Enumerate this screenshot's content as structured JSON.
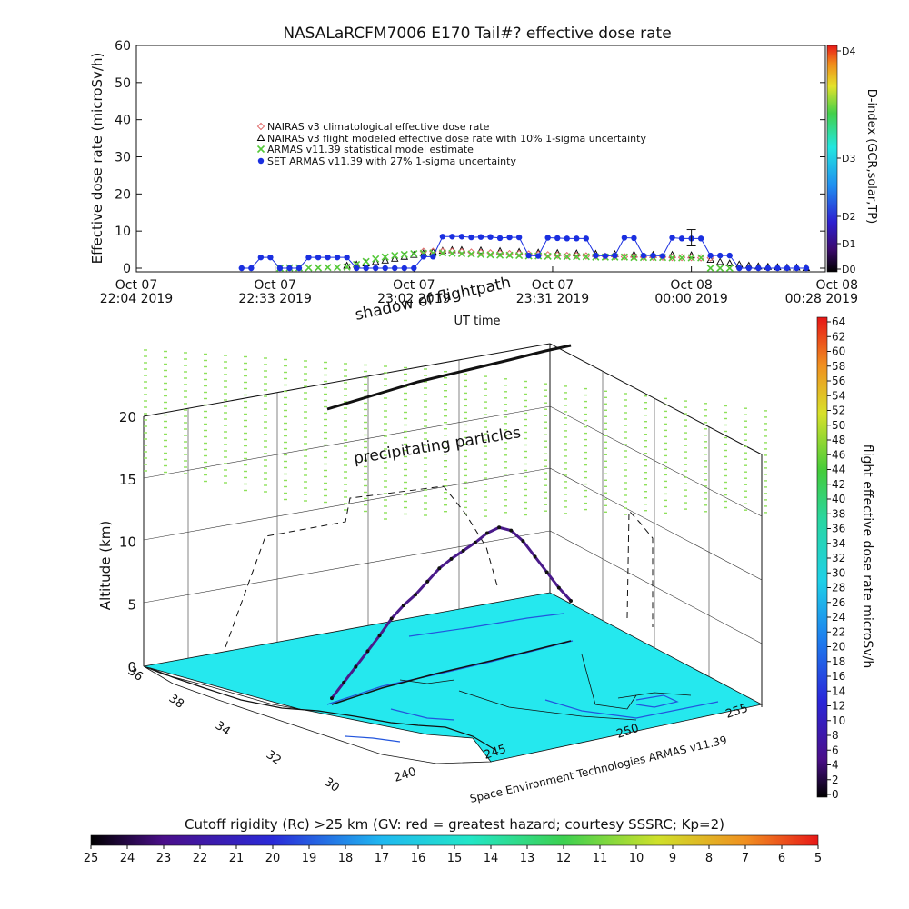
{
  "chart_data": [
    {
      "type": "scatter",
      "title": "NASALaRCFM7006  E170 Tail#? effective dose rate",
      "ylabel": "Effective dose rate  (microSv/h)",
      "xlabel": "UT time",
      "ylim": [
        0,
        60
      ],
      "yticks": [
        0,
        10,
        20,
        30,
        40,
        50,
        60
      ],
      "xlim_minutes": [
        0,
        144
      ],
      "xticks": [
        {
          "m": 0,
          "line1": "Oct 07",
          "line2": "22:04  2019"
        },
        {
          "m": 29,
          "line1": "Oct 07",
          "line2": "22:33  2019"
        },
        {
          "m": 58,
          "line1": "Oct 07",
          "line2": "23:02  2019"
        },
        {
          "m": 87,
          "line1": "Oct 07",
          "line2": "23:31  2019"
        },
        {
          "m": 116,
          "line1": "Oct 08",
          "line2": "00:00  2019"
        },
        {
          "m": 144,
          "line1": "Oct 08",
          "line2": "00:28  2019"
        }
      ],
      "right_axis": {
        "label": "D-index (GCR,solar,TP)",
        "ticks": [
          "D0",
          "D1",
          "D2",
          "D3",
          "D4"
        ]
      },
      "legend": [
        {
          "label": "NAIRAS v3 climatological effective dose rate",
          "color": "#e06a6a",
          "marker": "diamond"
        },
        {
          "label": "NAIRAS v3 flight modeled effective dose rate with 10% 1-sigma uncertainty",
          "color": "#000000",
          "marker": "triangle"
        },
        {
          "label": "ARMAS v11.39 statistical model estimate",
          "color": "#55c93a",
          "marker": "x"
        },
        {
          "label": "SET ARMAS v11.39 with 27% 1-sigma uncertainty",
          "color": "#1a2fe0",
          "marker": "circle"
        }
      ],
      "series": [
        {
          "name": "NAIRAS v3 flight modeled effective dose rate with 10% 1-sigma uncertainty",
          "x": [
            44,
            46,
            48,
            50,
            52,
            54,
            56,
            58,
            60,
            62,
            64,
            66,
            68,
            72,
            76,
            80,
            84,
            88,
            92,
            96,
            100,
            104,
            108,
            112,
            116,
            120,
            122,
            124,
            126,
            128,
            130,
            132,
            134,
            136,
            138,
            140
          ],
          "y": [
            0.6,
            0.9,
            1.2,
            1.6,
            2.0,
            2.5,
            3.0,
            3.5,
            3.9,
            4.3,
            4.6,
            4.8,
            4.8,
            4.7,
            4.5,
            4.3,
            4.1,
            4.0,
            3.9,
            3.8,
            3.7,
            3.6,
            3.5,
            3.5,
            3.4,
            2.2,
            1.6,
            1.2,
            0.9,
            0.6,
            0.4,
            0.3,
            0.2,
            0.1,
            0.1,
            0.0
          ]
        },
        {
          "name": "NAIRAS v3 climatological effective dose rate",
          "x": [
            60,
            62,
            64,
            66,
            68,
            70,
            72,
            74,
            76,
            78,
            80,
            82,
            84,
            86,
            88,
            90,
            92,
            94,
            96,
            98,
            100,
            102,
            104,
            106,
            108,
            110,
            112,
            114,
            116,
            118,
            120
          ],
          "y": [
            4.5,
            4.5,
            4.5,
            4.5,
            4.4,
            4.3,
            4.2,
            4.1,
            4.0,
            3.9,
            3.9,
            3.8,
            3.7,
            3.6,
            3.5,
            3.4,
            3.4,
            3.3,
            3.3,
            3.2,
            3.2,
            3.1,
            3.1,
            3.0,
            3.0,
            3.0,
            2.9,
            2.9,
            2.9,
            2.8,
            2.8
          ]
        },
        {
          "name": "ARMAS v11.39 statistical model estimate",
          "x": [
            30,
            32,
            34,
            36,
            38,
            40,
            42,
            44,
            46,
            48,
            50,
            52,
            54,
            56,
            58,
            60,
            62,
            64,
            66,
            68,
            70,
            72,
            74,
            76,
            78,
            80,
            82,
            84,
            86,
            88,
            90,
            92,
            94,
            96,
            98,
            100,
            102,
            104,
            106,
            108,
            110,
            112,
            114,
            116,
            118,
            120,
            122,
            124
          ],
          "y": [
            0.0,
            0.1,
            0.1,
            0.1,
            0.1,
            0.2,
            0.2,
            0.3,
            1.0,
            1.8,
            2.5,
            3.0,
            3.4,
            3.7,
            3.9,
            4.0,
            4.1,
            4.1,
            4.0,
            3.9,
            3.8,
            3.7,
            3.6,
            3.5,
            3.5,
            3.4,
            3.3,
            3.3,
            3.2,
            3.2,
            3.1,
            3.1,
            3.1,
            3.0,
            3.0,
            3.0,
            3.0,
            2.9,
            2.9,
            2.9,
            2.9,
            2.8,
            2.8,
            2.8,
            2.8,
            0.0,
            0.0,
            0.0
          ]
        },
        {
          "name": "SET ARMAS v11.39 with 27% 1-sigma uncertainty",
          "x": [
            22,
            24,
            26,
            28,
            30,
            32,
            34,
            36,
            38,
            40,
            42,
            44,
            46,
            48,
            50,
            52,
            54,
            56,
            58,
            60,
            62,
            64,
            66,
            68,
            70,
            72,
            74,
            76,
            78,
            80,
            82,
            84,
            86,
            88,
            90,
            92,
            94,
            96,
            98,
            100,
            102,
            104,
            106,
            108,
            110,
            112,
            114,
            116,
            118,
            120,
            122,
            124,
            126,
            128,
            130,
            132,
            134,
            136,
            138,
            140
          ],
          "y": [
            0,
            0,
            2.9,
            2.9,
            0,
            0,
            0,
            2.9,
            2.9,
            2.9,
            2.9,
            2.9,
            0,
            0,
            0,
            0,
            0,
            0,
            0,
            3.1,
            3.1,
            8.5,
            8.5,
            8.5,
            8.3,
            8.4,
            8.4,
            8.1,
            8.3,
            8.3,
            3.4,
            3.3,
            8.2,
            8.1,
            8.0,
            8.0,
            8.0,
            3.4,
            3.3,
            3.4,
            8.2,
            8.1,
            3.4,
            3.4,
            3.3,
            8.2,
            8.0,
            8.0,
            8.0,
            3.4,
            3.4,
            3.4,
            0,
            0,
            0,
            0,
            0,
            0,
            0,
            0
          ]
        }
      ],
      "error_bar": {
        "x": 116,
        "y": 8.2,
        "low": 6.0,
        "high": 10.4
      }
    },
    {
      "type": "scatter",
      "title": "",
      "zlabel": "Altitude (km)",
      "zticks": [
        0,
        5,
        10,
        15,
        20
      ],
      "lat_ticks": [
        "36",
        "38",
        "34",
        "32",
        "30"
      ],
      "lon_ticks": [
        "240",
        "245",
        "250",
        "255"
      ],
      "annotations": [
        "shadow of flightpath",
        "precipitating particles"
      ],
      "credit": "Space Environment Technologies ARMAS v11.39",
      "colorbar": {
        "label": "flight effective dose rate microSv/h",
        "ticks": [
          0,
          2,
          4,
          6,
          8,
          10,
          12,
          14,
          16,
          18,
          20,
          22,
          24,
          26,
          28,
          30,
          32,
          34,
          36,
          38,
          40,
          42,
          44,
          46,
          48,
          50,
          52,
          54,
          56,
          58,
          60,
          62,
          64
        ]
      },
      "flight_altitude_km": [
        0.5,
        1.5,
        2.5,
        3.5,
        4.5,
        5.6,
        6.4,
        7.0,
        7.8,
        8.6,
        9.1,
        9.5,
        9.9,
        10.4,
        10.6,
        10.1,
        9.0,
        7.5,
        6.0,
        4.5,
        3.2
      ]
    }
  ],
  "bottom_colorbar": {
    "label": "Cutoff rigidity (Rc) >25 km (GV: red = greatest hazard; courtesy SSSRC; Kp=2)",
    "ticks": [
      "25",
      "24",
      "23",
      "22",
      "21",
      "20",
      "19",
      "18",
      "17",
      "16",
      "15",
      "14",
      "13",
      "12",
      "11",
      "10",
      "9",
      "8",
      "7",
      "6",
      "5"
    ]
  },
  "colors": {
    "ground": "#25e8ee",
    "ground_contour": "#2255dd",
    "flight_track": "#4a1a8a",
    "particles": "#8fe05a",
    "nairas": "#000000",
    "climatological": "#e06a6a",
    "armas_model": "#55c93a",
    "set_armas": "#1a2fe0"
  }
}
